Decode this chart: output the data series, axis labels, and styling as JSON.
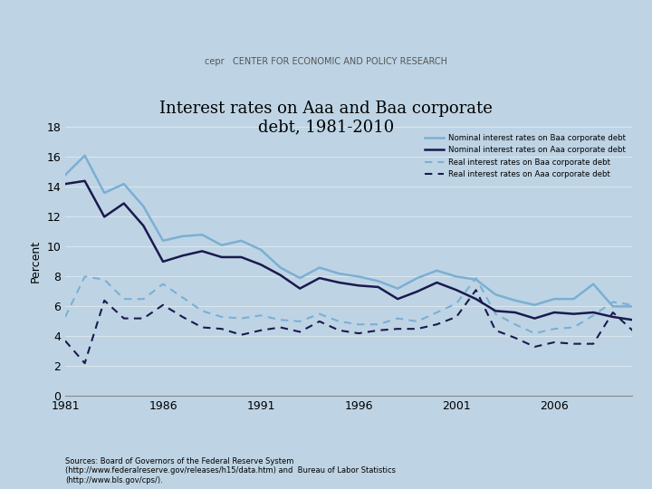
{
  "title": "Interest rates on Aaa and Baa corporate\ndebt, 1981-2010",
  "ylabel": "Percent",
  "source_text": "Sources: Board of Governors of the Federal Reserve System\n(http://www.federalreserve.gov/releases/h15/data.htm) and  Bureau of Labor Statistics\n(http://www.bls.gov/cps/).",
  "years": [
    1981,
    1982,
    1983,
    1984,
    1985,
    1986,
    1987,
    1988,
    1989,
    1990,
    1991,
    1992,
    1993,
    1994,
    1995,
    1996,
    1997,
    1998,
    1999,
    2000,
    2001,
    2002,
    2003,
    2004,
    2005,
    2006,
    2007,
    2008,
    2009,
    2010
  ],
  "nominal_baa": [
    14.8,
    16.1,
    13.6,
    14.2,
    12.7,
    10.4,
    10.7,
    10.8,
    10.1,
    10.4,
    9.8,
    8.6,
    7.9,
    8.6,
    8.2,
    8.0,
    7.7,
    7.2,
    7.9,
    8.4,
    8.0,
    7.8,
    6.8,
    6.4,
    6.1,
    6.5,
    6.5,
    7.5,
    6.0,
    6.0
  ],
  "nominal_aaa": [
    14.2,
    14.4,
    12.0,
    12.9,
    11.4,
    9.0,
    9.4,
    9.7,
    9.3,
    9.3,
    8.8,
    8.1,
    7.2,
    7.9,
    7.6,
    7.4,
    7.3,
    6.5,
    7.0,
    7.6,
    7.1,
    6.5,
    5.7,
    5.6,
    5.2,
    5.6,
    5.5,
    5.6,
    5.3,
    5.1
  ],
  "real_baa": [
    5.3,
    8.0,
    7.8,
    6.5,
    6.5,
    7.5,
    6.6,
    5.7,
    5.3,
    5.2,
    5.4,
    5.1,
    5.0,
    5.5,
    5.0,
    4.8,
    4.8,
    5.2,
    5.0,
    5.6,
    6.2,
    7.9,
    5.5,
    4.8,
    4.2,
    4.5,
    4.6,
    5.4,
    6.3,
    6.1
  ],
  "real_aaa": [
    3.7,
    2.2,
    6.4,
    5.2,
    5.2,
    6.1,
    5.3,
    4.6,
    4.5,
    4.1,
    4.4,
    4.6,
    4.3,
    5.0,
    4.4,
    4.2,
    4.4,
    4.5,
    4.5,
    4.8,
    5.3,
    7.1,
    4.4,
    3.9,
    3.3,
    3.6,
    3.5,
    3.5,
    5.6,
    4.4
  ],
  "nominal_baa_color": "#7bafd4",
  "nominal_aaa_color": "#1a1a4e",
  "real_baa_color": "#7bafd4",
  "real_aaa_color": "#1a1a4e",
  "bg_color": "#bed4e4",
  "header_color": "#dce8f0",
  "ylim": [
    0,
    18
  ],
  "yticks": [
    0,
    2,
    4,
    6,
    8,
    10,
    12,
    14,
    16,
    18
  ],
  "xticks": [
    1981,
    1986,
    1991,
    1996,
    2001,
    2006
  ]
}
